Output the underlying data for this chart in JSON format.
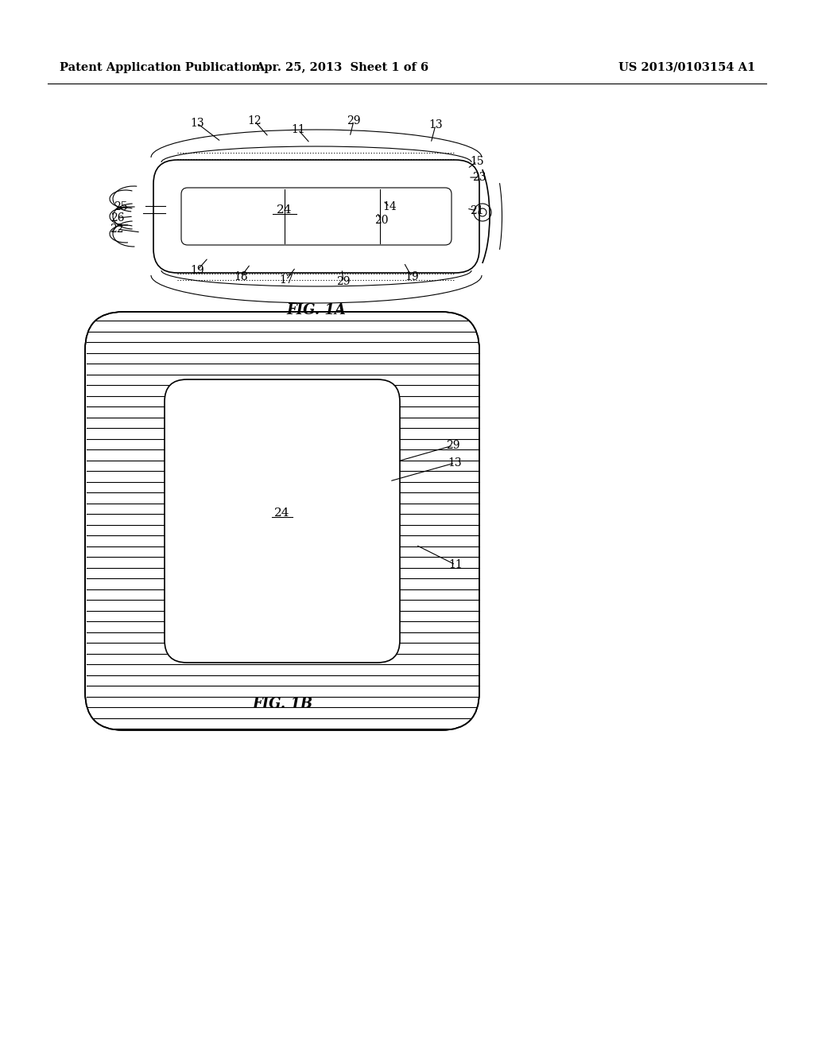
{
  "header_left": "Patent Application Publication",
  "header_mid": "Apr. 25, 2013  Sheet 1 of 6",
  "header_right": "US 2013/0103154 A1",
  "fig1a_label": "FIG. 1A",
  "fig1b_label": "FIG. 1B",
  "background_color": "#ffffff",
  "line_color": "#000000",
  "label_fontsize": 10,
  "header_fontsize": 10.5,
  "fig_label_fontsize": 13
}
